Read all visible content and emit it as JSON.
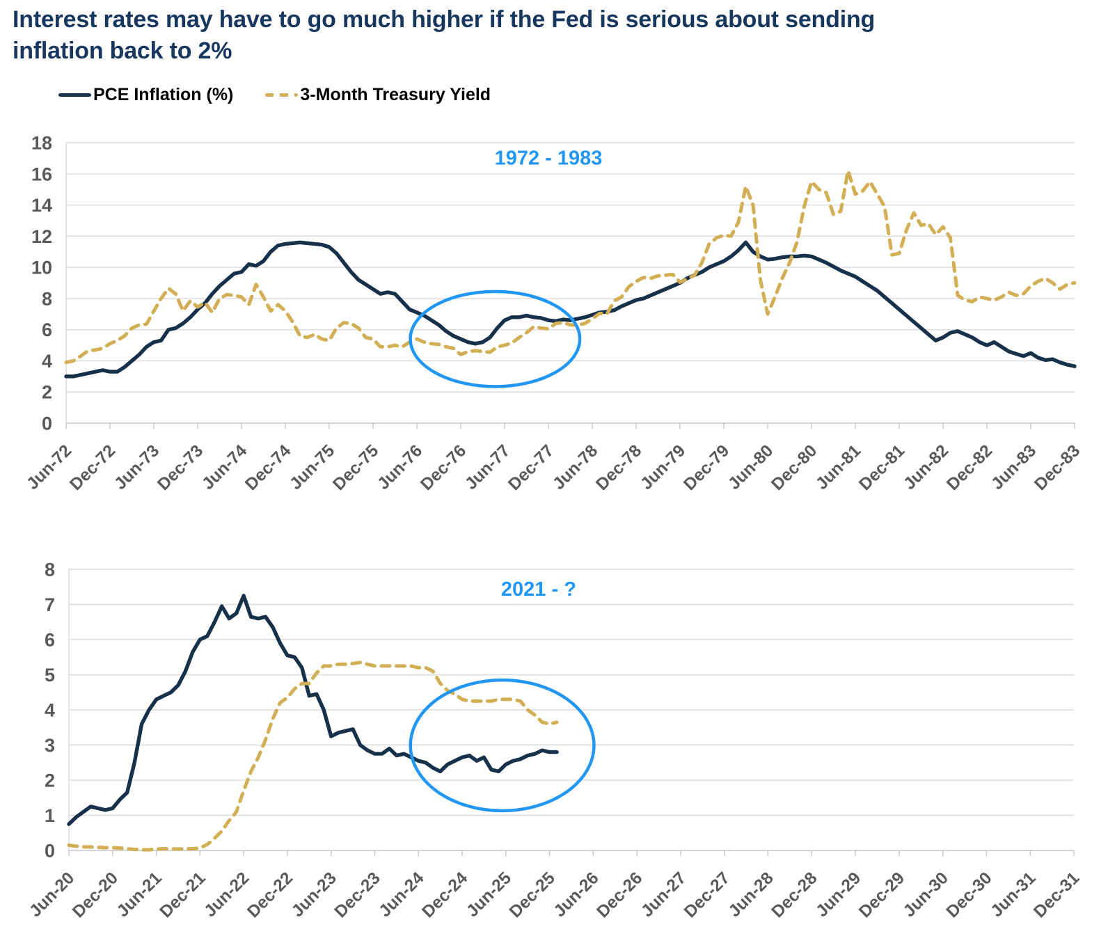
{
  "title": {
    "line1": "Interest rates may have to go much higher if the Fed is serious about sending",
    "line2": "inflation back to 2%"
  },
  "legend": {
    "items": [
      {
        "label": "PCE Inflation (%)",
        "series": "pce"
      },
      {
        "label": "3-Month Treasury Yield",
        "series": "treasury"
      }
    ]
  },
  "colors": {
    "pce": "#17314B",
    "treasury": "#D2AE54",
    "highlight": "#2196F3",
    "title": "#17375E",
    "axis_label": "#595959",
    "gridline": "#DBDBDB",
    "axis_line": "#C6C6C6",
    "legend_text": "#000000"
  },
  "chart_data": [
    {
      "type": "line",
      "panel": "top",
      "annotation": {
        "text": "1972 - 1983",
        "month_index": 66,
        "value": 17.05
      },
      "highlight_ellipse": {
        "month_index": 58.7,
        "value": 5.4,
        "rx_months": 11.6,
        "ry_values": 3.05
      },
      "x_axis": {
        "tick_every_months": 6,
        "months_total": 139,
        "tick_labels": [
          "Jun-72",
          "Dec-72",
          "Jun-73",
          "Dec-73",
          "Jun-74",
          "Dec-74",
          "Jun-75",
          "Dec-75",
          "Jun-76",
          "Dec-76",
          "Jun-77",
          "Dec-77",
          "Jun-78",
          "Dec-78",
          "Jun-79",
          "Dec-79",
          "Jun-80",
          "Dec-80",
          "Jun-81",
          "Dec-81",
          "Jun-82",
          "Dec-82",
          "Jun-83",
          "Dec-83"
        ]
      },
      "y_axis": {
        "min": 0,
        "max": 18,
        "step": 2
      },
      "series": [
        {
          "name": "PCE Inflation (%)",
          "color": "pce",
          "style": "solid",
          "start_month_index": 0,
          "monthly_values": [
            3.0,
            3.0,
            3.1,
            3.2,
            3.3,
            3.4,
            3.3,
            3.3,
            3.6,
            4.0,
            4.4,
            4.9,
            5.2,
            5.3,
            6.0,
            6.1,
            6.4,
            6.8,
            7.3,
            7.7,
            8.3,
            8.8,
            9.2,
            9.6,
            9.7,
            10.2,
            10.1,
            10.4,
            11.0,
            11.4,
            11.5,
            11.55,
            11.6,
            11.55,
            11.5,
            11.45,
            11.3,
            10.9,
            10.3,
            9.7,
            9.2,
            8.9,
            8.6,
            8.3,
            8.4,
            8.3,
            7.8,
            7.3,
            7.1,
            6.9,
            6.6,
            6.3,
            5.9,
            5.6,
            5.4,
            5.2,
            5.1,
            5.2,
            5.5,
            6.1,
            6.6,
            6.8,
            6.8,
            6.9,
            6.8,
            6.75,
            6.6,
            6.55,
            6.65,
            6.6,
            6.7,
            6.8,
            6.95,
            7.1,
            7.15,
            7.25,
            7.5,
            7.7,
            7.9,
            8.0,
            8.2,
            8.4,
            8.6,
            8.8,
            9.0,
            9.3,
            9.5,
            9.7,
            10.0,
            10.2,
            10.4,
            10.7,
            11.1,
            11.6,
            11.0,
            10.7,
            10.5,
            10.55,
            10.65,
            10.7,
            10.7,
            10.75,
            10.7,
            10.5,
            10.3,
            10.05,
            9.8,
            9.6,
            9.4,
            9.1,
            8.8,
            8.5,
            8.1,
            7.7,
            7.3,
            6.9,
            6.5,
            6.1,
            5.7,
            5.3,
            5.5,
            5.8,
            5.9,
            5.7,
            5.5,
            5.2,
            5.0,
            5.2,
            4.9,
            4.6,
            4.45,
            4.3,
            4.5,
            4.2,
            4.05,
            4.1,
            3.9,
            3.75,
            3.65
          ]
        },
        {
          "name": "3-Month Treasury Yield",
          "color": "treasury",
          "style": "dashed",
          "start_month_index": 0,
          "monthly_values": [
            3.9,
            4.0,
            4.3,
            4.65,
            4.7,
            4.8,
            5.1,
            5.3,
            5.6,
            6.1,
            6.3,
            6.35,
            7.2,
            8.0,
            8.65,
            8.3,
            7.2,
            7.85,
            7.45,
            7.75,
            7.1,
            8.0,
            8.25,
            8.2,
            8.1,
            7.6,
            8.9,
            8.1,
            7.2,
            7.6,
            7.2,
            6.5,
            5.6,
            5.5,
            5.7,
            5.4,
            5.3,
            6.1,
            6.45,
            6.4,
            6.1,
            5.5,
            5.4,
            4.9,
            4.9,
            5.0,
            4.9,
            5.2,
            5.4,
            5.2,
            5.1,
            5.05,
            4.9,
            4.8,
            4.4,
            4.6,
            4.65,
            4.6,
            4.55,
            4.9,
            5.0,
            5.15,
            5.5,
            5.8,
            6.2,
            6.1,
            6.05,
            6.4,
            6.45,
            6.3,
            6.3,
            6.4,
            6.7,
            7.05,
            7.0,
            7.85,
            8.1,
            8.75,
            9.1,
            9.35,
            9.3,
            9.45,
            9.5,
            9.55,
            9.05,
            9.25,
            9.5,
            10.3,
            11.5,
            11.9,
            12.05,
            12.0,
            12.9,
            15.2,
            14.0,
            9.2,
            7.0,
            8.1,
            9.3,
            10.3,
            11.6,
            13.9,
            15.5,
            15.0,
            14.8,
            13.4,
            13.6,
            16.2,
            14.7,
            14.9,
            15.5,
            14.7,
            13.9,
            10.8,
            10.9,
            12.4,
            13.5,
            12.7,
            12.8,
            12.1,
            12.6,
            11.9,
            8.2,
            7.9,
            7.8,
            8.1,
            8.0,
            7.9,
            8.1,
            8.4,
            8.2,
            8.3,
            8.8,
            9.1,
            9.3,
            9.0,
            8.6,
            8.9,
            9.0
          ]
        }
      ]
    },
    {
      "type": "line",
      "panel": "bottom",
      "annotation": {
        "text": "2021 - ?",
        "month_index": 64.5,
        "value": 7.45
      },
      "highlight_ellipse": {
        "month_index": 59.5,
        "value": 2.99,
        "rx_months": 12.6,
        "ry_values": 1.86
      },
      "x_axis": {
        "tick_every_months": 6,
        "months_total": 139,
        "tick_labels": [
          "Jun-20",
          "Dec-20",
          "Jun-21",
          "Dec-21",
          "Jun-22",
          "Dec-22",
          "Jun-23",
          "Dec-23",
          "Jun-24",
          "Dec-24",
          "Jun-25",
          "Dec-25",
          "Jun-26",
          "Dec-26",
          "Jun-27",
          "Dec-27",
          "Jun-28",
          "Dec-28",
          "Jun-29",
          "Dec-29",
          "Jun-30",
          "Dec-30",
          "Jun-31",
          "Dec-31"
        ]
      },
      "y_axis": {
        "min": 0,
        "max": 8,
        "step": 1
      },
      "series": [
        {
          "name": "PCE Inflation (%)",
          "color": "pce",
          "style": "solid",
          "start_month_index": 0,
          "monthly_values": [
            0.75,
            0.95,
            1.1,
            1.25,
            1.2,
            1.15,
            1.2,
            1.45,
            1.65,
            2.5,
            3.6,
            4.0,
            4.3,
            4.4,
            4.5,
            4.7,
            5.1,
            5.65,
            6.0,
            6.1,
            6.5,
            6.95,
            6.6,
            6.75,
            7.25,
            6.65,
            6.6,
            6.65,
            6.35,
            5.9,
            5.55,
            5.5,
            5.2,
            4.4,
            4.45,
            4.0,
            3.25,
            3.35,
            3.4,
            3.45,
            3.0,
            2.85,
            2.75,
            2.75,
            2.9,
            2.7,
            2.75,
            2.65,
            2.55,
            2.5,
            2.35,
            2.25,
            2.45,
            2.55,
            2.65,
            2.7,
            2.55,
            2.65,
            2.3,
            2.25,
            2.45,
            2.55,
            2.6,
            2.7,
            2.75,
            2.85,
            2.8,
            2.8
          ]
        },
        {
          "name": "3-Month Treasury Yield",
          "color": "treasury",
          "style": "dashed",
          "start_month_index": 0,
          "monthly_values": [
            0.15,
            0.12,
            0.1,
            0.1,
            0.09,
            0.08,
            0.08,
            0.07,
            0.05,
            0.03,
            0.02,
            0.02,
            0.04,
            0.05,
            0.05,
            0.04,
            0.05,
            0.05,
            0.07,
            0.17,
            0.35,
            0.55,
            0.85,
            1.1,
            1.7,
            2.25,
            2.65,
            3.15,
            3.75,
            4.2,
            4.35,
            4.6,
            4.75,
            4.75,
            5.05,
            5.25,
            5.25,
            5.3,
            5.3,
            5.32,
            5.35,
            5.3,
            5.25,
            5.25,
            5.25,
            5.25,
            5.25,
            5.25,
            5.2,
            5.2,
            5.1,
            4.75,
            4.55,
            4.45,
            4.3,
            4.25,
            4.25,
            4.25,
            4.25,
            4.3,
            4.3,
            4.3,
            4.25,
            4.0,
            3.85,
            3.65,
            3.6,
            3.65
          ]
        }
      ]
    }
  ]
}
